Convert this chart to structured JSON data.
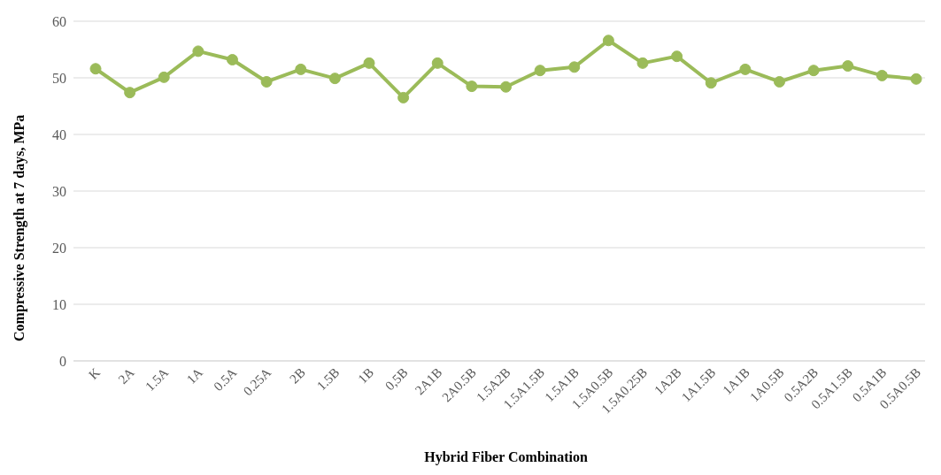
{
  "chart_data": {
    "type": "line",
    "xlabel": "Hybrid Fiber Combination",
    "ylabel": "Compressive Strength at 7 days, MPa",
    "categories": [
      "K",
      "2A",
      "1.5A",
      "1A",
      "0.5A",
      "0.25A",
      "2B",
      "1.5B",
      "1B",
      "0,5B",
      "2A1B",
      "2A0.5B",
      "1.5A2B",
      "1.5A1.5B",
      "1.5A1B",
      "1.5A0.5B",
      "1.5A0.25B",
      "1A2B",
      "1A1.5B",
      "1A1B",
      "1A0.5B",
      "0.5A2B",
      "0.5A1.5B",
      "0.5A1B",
      "0.5A0.5B"
    ],
    "series": [
      {
        "color": "#9bbb59",
        "values": [
          51.6,
          47.4,
          50.1,
          54.7,
          53.2,
          49.3,
          51.5,
          49.9,
          52.6,
          46.5,
          52.6,
          48.5,
          48.4,
          51.3,
          51.9,
          56.6,
          52.6,
          53.8,
          49.1,
          51.5,
          49.3,
          51.3,
          52.1,
          50.4,
          49.8
        ]
      }
    ],
    "ylim": [
      0,
      60
    ],
    "yticks": [
      0,
      10,
      20,
      30,
      40,
      50,
      60
    ],
    "grid": "y",
    "marker": "circle",
    "line_style": "solid",
    "legend": false
  }
}
